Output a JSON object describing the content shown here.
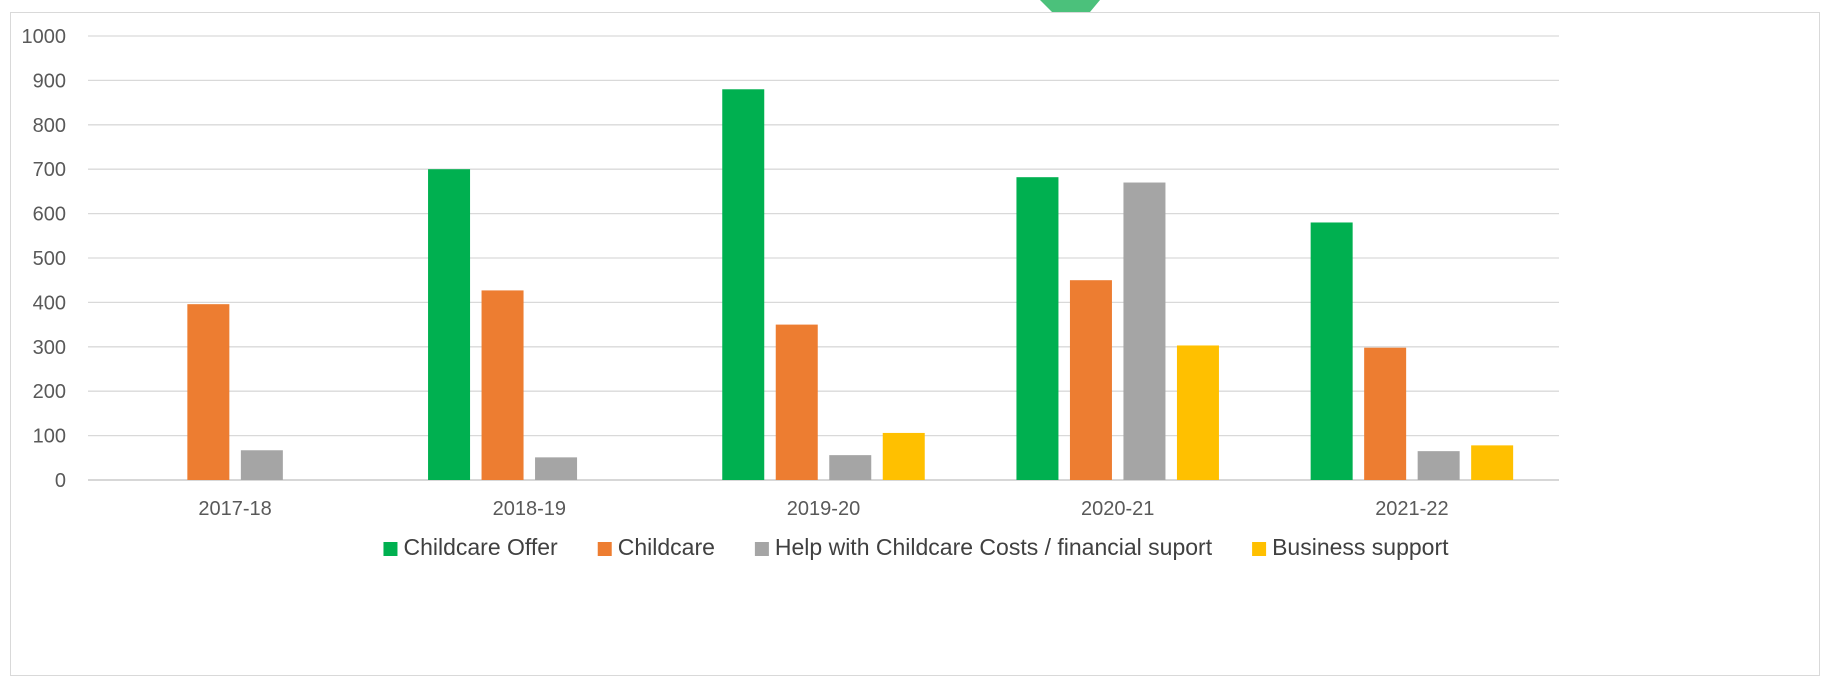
{
  "chart_data": {
    "type": "bar",
    "title": "",
    "xlabel": "",
    "ylabel": "",
    "categories": [
      "2017-18",
      "2018-19",
      "2019-20",
      "2020-21",
      "2021-22"
    ],
    "ylim": [
      0,
      1000
    ],
    "yticks": [
      0,
      100,
      200,
      300,
      400,
      500,
      600,
      700,
      800,
      900,
      1000
    ],
    "grid": true,
    "legend_position": "bottom",
    "series": [
      {
        "name": "Childcare Offer",
        "color": "#00B050",
        "values": [
          null,
          700,
          880,
          682,
          580
        ]
      },
      {
        "name": "Childcare",
        "color": "#ED7D31",
        "values": [
          396,
          427,
          350,
          450,
          298
        ]
      },
      {
        "name": "Help with Childcare Costs / financial suport",
        "color": "#A5A5A5",
        "values": [
          67,
          51,
          56,
          670,
          65
        ]
      },
      {
        "name": "Business support",
        "color": "#FFC000",
        "values": [
          null,
          null,
          106,
          303,
          78
        ]
      }
    ]
  },
  "decor": {
    "accent_color": "#4BC17B"
  }
}
